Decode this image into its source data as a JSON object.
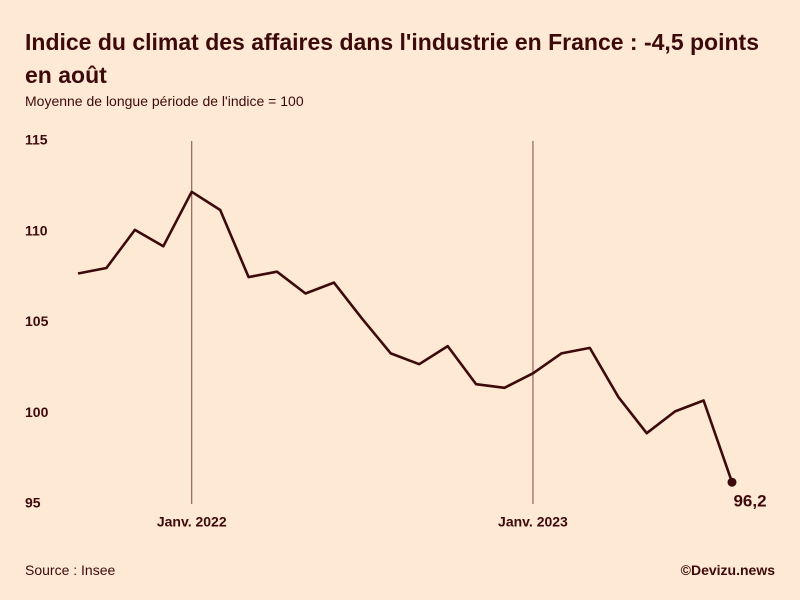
{
  "chart_data": {
    "type": "line",
    "title": "Indice du climat des affaires dans l'industrie en France : -4,5 points en août",
    "subtitle": "Moyenne de longue période de l'indice = 100",
    "source": "Source : Insee",
    "credit": "©Devizu.news",
    "categories": [
      null,
      null,
      null,
      null,
      "Janv. 2022",
      null,
      null,
      null,
      null,
      null,
      null,
      null,
      null,
      null,
      null,
      null,
      "Janv. 2023",
      null,
      null,
      null,
      null,
      null,
      null,
      null
    ],
    "values": [
      107.7,
      108.0,
      110.1,
      109.2,
      112.2,
      111.2,
      107.5,
      107.8,
      106.6,
      107.2,
      105.2,
      103.3,
      102.7,
      103.7,
      101.6,
      101.4,
      102.2,
      103.3,
      103.6,
      100.9,
      98.9,
      100.1,
      100.7,
      96.2
    ],
    "value_labels": [
      null,
      null,
      null,
      null,
      null,
      null,
      null,
      null,
      null,
      null,
      null,
      null,
      null,
      null,
      null,
      null,
      null,
      null,
      null,
      null,
      null,
      null,
      null,
      "96,2"
    ],
    "color": "#3d0a0c",
    "ylim": [
      95,
      115
    ],
    "yticks": [
      95,
      100,
      105,
      110,
      115
    ]
  }
}
